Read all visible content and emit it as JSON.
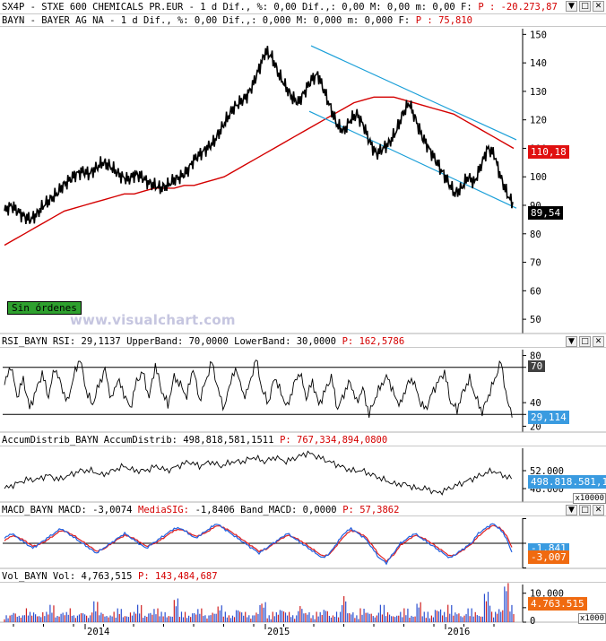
{
  "top_bar": {
    "text": "SX4P - STXE 600 CHEMICALS PR.EUR -  1 d Dif.,  %: 0,00 Dif.,: 0,00 M: 0,00 m: 0,00 F:",
    "pvalue": "P : -20.273,87"
  },
  "price_panel": {
    "header": "BAYN - BAYER AG  NA -  1 d Dif.,  %: 0,00 Dif.,: 0,000 M: 0,000 m: 0,000 F:",
    "pvalue": "P : 75,810",
    "ma_tag": "110,18",
    "last_tag": "89,54",
    "sin_ordenes": "Sin órdenes",
    "watermark": "www.visualchart.com"
  },
  "rsi_panel": {
    "header": "RSI_BAYN RSI: 29,1137 UpperBand: 70,0000 LowerBand: 30,0000",
    "pvalue": "P: 162,5786",
    "upper_tag": "70",
    "last_tag": "29,114"
  },
  "ad_panel": {
    "header": "AccumDistrib_BAYN AccumDistrib: 498,818,581,1511",
    "pvalue": "P: 767,334,894,0800",
    "last_tag": "498.818.581,15",
    "multiplier": "x10000"
  },
  "macd_panel": {
    "header_a": "MACD_BAYN MACD: -3,0074",
    "header_b": "MediaSIG:",
    "header_c": "-1,8406 Band_MACD: 0,0000",
    "pvalue": "P: 57,3862",
    "tag1": "-1,841",
    "tag2": "-3,007"
  },
  "vol_panel": {
    "header": "Vol_BAYN Vol: 4,763,515",
    "pvalue": "P: 143,484,687",
    "last_tag": "4.763.515",
    "multiplier": "x1000"
  },
  "window_buttons": [
    "▼",
    "□",
    "✕"
  ],
  "colors": {
    "price": "#000000",
    "moving_average": "#d40000",
    "channel": "#1a9fd8",
    "rsi": "#000000",
    "macd": "#2060e0",
    "signal": "#e02020",
    "vol_up": "#2a4fd0",
    "vol_down": "#d02020"
  },
  "chart_data": [
    {
      "type": "line",
      "name": "price",
      "x_ticks": [
        "2014",
        "2015",
        "2016"
      ],
      "y_ticks": [
        50,
        60,
        70,
        80,
        90,
        100,
        110,
        120,
        130,
        140,
        150
      ],
      "ylim": [
        45,
        152
      ],
      "series": [
        {
          "values": [
            88,
            90,
            88,
            86,
            85,
            87,
            90,
            92,
            94,
            97,
            99,
            101,
            102,
            101,
            103,
            105,
            104,
            102,
            100,
            99,
            101,
            100,
            98,
            97,
            96,
            97,
            99,
            100,
            102,
            106,
            108,
            110,
            112,
            116,
            120,
            124,
            126,
            128,
            132,
            138,
            144,
            142,
            136,
            132,
            128,
            126,
            130,
            134,
            136,
            130,
            124,
            118,
            116,
            120,
            122,
            118,
            112,
            108,
            110,
            112,
            116,
            122,
            126,
            120,
            114,
            110,
            106,
            102,
            98,
            94,
            96,
            100,
            98,
            104,
            110,
            108,
            100,
            94,
            90
          ]
        },
        {
          "values": [
            76,
            78,
            80,
            82,
            84,
            86,
            88,
            89,
            90,
            91,
            92,
            93,
            94,
            94,
            95,
            96,
            96,
            96,
            97,
            97,
            98,
            99,
            100,
            102,
            104,
            106,
            108,
            110,
            112,
            114,
            116,
            118,
            120,
            122,
            124,
            126,
            127,
            128,
            128,
            128,
            127,
            126,
            125,
            124,
            123,
            122,
            120,
            118,
            116,
            114,
            112,
            110
          ]
        }
      ]
    },
    {
      "type": "line",
      "name": "rsi",
      "ylim": [
        15,
        85
      ],
      "y_ticks": [
        20,
        30,
        40,
        70,
        80
      ],
      "series": [
        {
          "values": [
            55,
            72,
            45,
            60,
            35,
            50,
            65,
            45,
            70,
            55,
            40,
            62,
            78,
            50,
            38,
            55,
            68,
            42,
            60,
            48,
            35,
            58,
            66,
            44,
            72,
            50,
            38,
            62,
            55,
            45,
            70,
            42,
            58,
            75,
            50,
            35,
            60,
            68,
            45,
            55,
            78,
            50,
            40,
            62,
            48,
            36,
            55,
            66,
            44,
            58,
            38,
            50,
            62,
            34,
            48,
            58,
            40,
            52,
            30,
            44,
            56,
            62,
            46,
            38,
            55,
            60,
            42,
            34,
            48,
            58,
            66,
            40,
            34,
            50,
            60,
            44,
            32,
            46,
            60,
            75,
            40,
            29
          ]
        }
      ]
    },
    {
      "type": "line",
      "name": "accumdistrib",
      "y_ticks": [
        48000,
        52000
      ],
      "series": [
        {
          "values": [
            48,
            49,
            50,
            50,
            51,
            50,
            51,
            52,
            52,
            51,
            52,
            53,
            52,
            52,
            53,
            52,
            53,
            54,
            53,
            54,
            53,
            54,
            54,
            55,
            54,
            55,
            54,
            55,
            56,
            55,
            54,
            53,
            52,
            52,
            51,
            50,
            49,
            49,
            48,
            48,
            47,
            48,
            49,
            50,
            51,
            52,
            51,
            50
          ]
        }
      ]
    },
    {
      "type": "line",
      "name": "macd",
      "series": [
        {
          "name": "MACD",
          "values": [
            1,
            2,
            1,
            0,
            -1,
            0,
            1,
            2,
            3,
            2,
            1,
            0,
            -1,
            -2,
            -1,
            0,
            1,
            2,
            1,
            0,
            -1,
            0,
            1,
            2,
            3,
            3,
            2,
            1,
            2,
            3,
            4,
            3,
            2,
            1,
            0,
            -1,
            -2,
            -1,
            0,
            1,
            2,
            1,
            0,
            -1,
            -2,
            -3,
            -2,
            0,
            2,
            3,
            2,
            1,
            -1,
            -3,
            -4,
            -2,
            0,
            1,
            2,
            1,
            0,
            -1,
            -2,
            -3,
            -2,
            -1,
            0,
            2,
            3,
            4,
            3,
            1,
            -3
          ]
        },
        {
          "name": "MediaSIG",
          "values": [
            0.5,
            1.5,
            1.2,
            0.4,
            -0.6,
            -0.2,
            0.6,
            1.6,
            2.6,
            2.2,
            1.4,
            0.4,
            -0.6,
            -1.6,
            -1.2,
            -0.2,
            0.8,
            1.6,
            1.2,
            0.4,
            -0.6,
            -0.2,
            0.6,
            1.6,
            2.6,
            2.8,
            2.2,
            1.4,
            1.8,
            2.6,
            3.6,
            3.2,
            2.4,
            1.4,
            0.4,
            -0.6,
            -1.6,
            -1.2,
            -0.2,
            0.8,
            1.6,
            1.2,
            0.4,
            -0.6,
            -1.6,
            -2.6,
            -2.2,
            -0.4,
            1.4,
            2.6,
            2.2,
            1.4,
            -0.4,
            -2.4,
            -3.6,
            -2.4,
            -0.4,
            0.6,
            1.6,
            1.2,
            0.4,
            -0.6,
            -1.6,
            -2.6,
            -2.2,
            -1.2,
            -0.2,
            1.4,
            2.6,
            3.6,
            3.2,
            1.6,
            -1.8
          ]
        }
      ]
    },
    {
      "type": "bar",
      "name": "volume",
      "y_ticks": [
        0,
        5000,
        10000
      ],
      "series": [
        {
          "values": [
            2,
            3,
            2,
            4,
            3,
            2,
            3,
            5,
            2,
            3,
            4,
            2,
            3,
            2,
            6,
            3,
            2,
            3,
            4,
            2,
            3,
            5,
            2,
            3,
            4,
            3,
            2,
            7,
            3,
            2,
            3,
            4,
            2,
            3,
            5,
            3,
            2,
            4,
            3,
            2,
            3,
            6,
            2,
            3,
            4,
            3,
            2,
            5,
            3,
            2,
            3,
            4,
            2,
            3,
            8,
            3,
            2,
            4,
            3,
            2,
            5,
            3,
            2,
            3,
            4,
            2,
            6,
            3,
            2,
            4,
            3,
            5,
            3,
            2,
            4,
            3,
            2,
            9,
            3,
            4,
            12,
            5
          ]
        }
      ]
    }
  ]
}
